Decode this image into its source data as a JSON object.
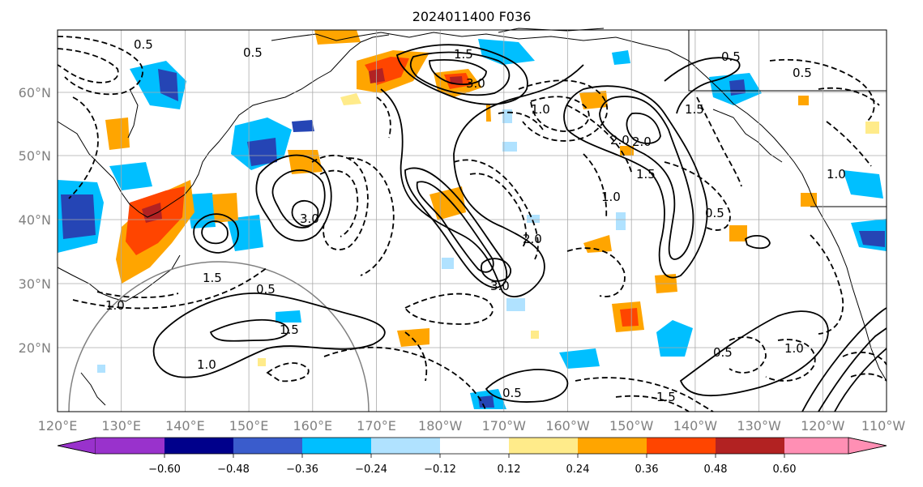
{
  "title": "2024011400 F036",
  "map": {
    "lon_ticks": [
      "120°E",
      "130°E",
      "140°E",
      "150°E",
      "160°E",
      "170°E",
      "180°W",
      "170°W",
      "160°W",
      "150°W",
      "140°W",
      "130°W",
      "120°W",
      "110°W"
    ],
    "lat_ticks": [
      "60°N",
      "50°N",
      "40°N",
      "30°N",
      "20°N"
    ],
    "land_color": "#000000",
    "grid": true
  },
  "colorbar": {
    "colors": [
      "#9932cc",
      "#00008b",
      "#3a5ccc",
      "#00bfff",
      "#b0e2ff",
      "#ffffff",
      "#ffeb8a",
      "#ffa500",
      "#ff4500",
      "#b22222",
      "#ff8fb4"
    ],
    "labels": [
      "−0.60",
      "−0.48",
      "−0.36",
      "−0.24",
      "−0.12",
      "0.12",
      "0.24",
      "0.36",
      "0.48",
      "0.60"
    ],
    "extend": "both"
  },
  "contour_labels": [
    "0.5",
    "0.5",
    "1.5",
    "3.0",
    "2.0",
    "1.0",
    "1.5",
    "1.0",
    "0.5",
    "1.5",
    "1.0",
    "3.0",
    "2.0",
    "1.5",
    "1.0",
    "0.5",
    "2.0",
    "1.5",
    "1.0",
    "0.5",
    "0.5",
    "1.0",
    "1.5",
    "0.5",
    "3.0",
    "0.5"
  ]
}
